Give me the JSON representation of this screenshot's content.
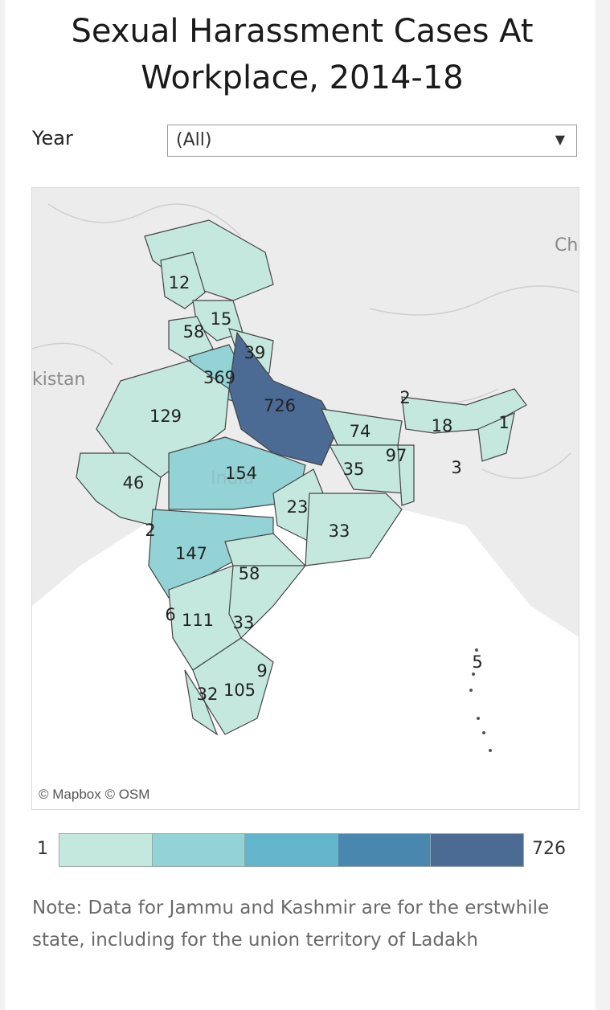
{
  "title": "Sexual Harassment Cases At\nWorkplace, 2014-18",
  "filter": {
    "label": "Year",
    "value": "(All)"
  },
  "map": {
    "attribution": "© Mapbox  © OSM",
    "country_labels": [
      "Ch",
      "kistan",
      "India"
    ],
    "values": [
      12,
      15,
      58,
      39,
      369,
      726,
      129,
      46,
      154,
      74,
      35,
      97,
      2,
      18,
      1,
      3,
      23,
      33,
      147,
      58,
      2,
      6,
      111,
      33,
      9,
      32,
      105,
      5
    ]
  },
  "legend": {
    "min": "1",
    "max": "726",
    "colors": [
      "#c5e8de",
      "#93d3d6",
      "#63b5cc",
      "#4a87ae",
      "#4b6a94"
    ]
  },
  "note": "Note: Data for Jammu and Kashmir are for the erstwhile state, including for the union territory of Ladakh"
}
